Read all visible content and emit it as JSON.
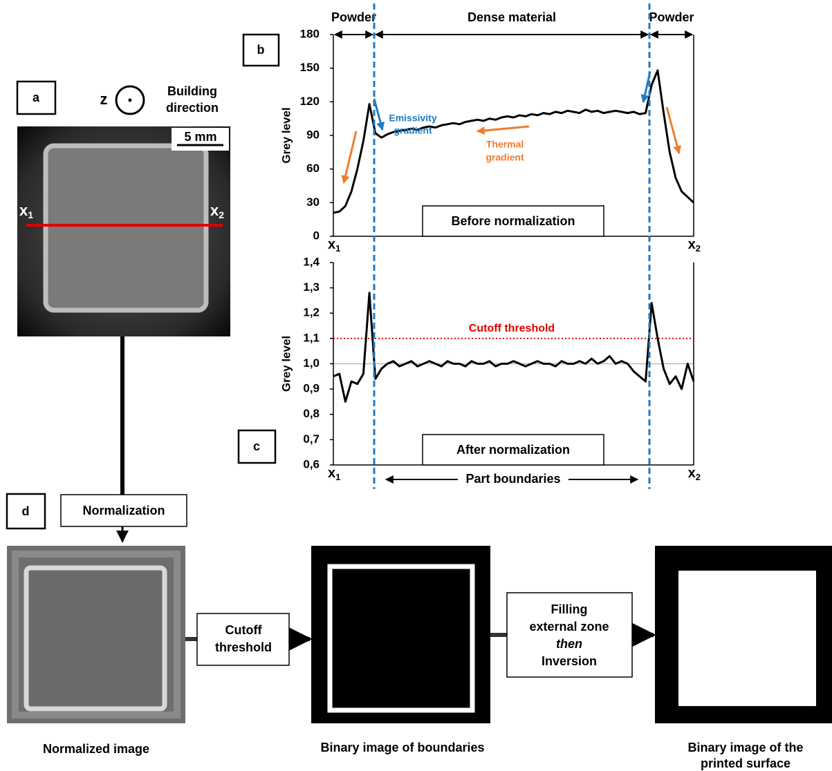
{
  "panel_labels": {
    "a": "a",
    "b": "b",
    "c": "c",
    "d": "d"
  },
  "panel_a": {
    "axis": "z",
    "direction": [
      "Building",
      "direction"
    ],
    "scale_bar": "5 mm",
    "x_start": {
      "main": "x",
      "sub": "1"
    },
    "x_end": {
      "main": "x",
      "sub": "2"
    }
  },
  "chart_data": [
    {
      "type": "line",
      "y_label": "Grey level",
      "color": "#000000",
      "ylim": [
        0,
        180
      ],
      "yticks": [
        0,
        30,
        60,
        90,
        120,
        150,
        180
      ],
      "x_start": {
        "main": "x",
        "sub": "1"
      },
      "x_end": {
        "main": "x",
        "sub": "2"
      },
      "regions": [
        "Powder",
        "Dense material",
        "Powder"
      ],
      "emissivity_label": [
        "Emissivity",
        "gradient"
      ],
      "thermal_label": [
        "Thermal",
        "gradient"
      ],
      "box_label": "Before normalization",
      "values": [
        21,
        22,
        27,
        40,
        60,
        85,
        118,
        92,
        88,
        91,
        93,
        94,
        95,
        96,
        95,
        97,
        98,
        97,
        99,
        100,
        101,
        100,
        102,
        103,
        104,
        103,
        105,
        104,
        106,
        107,
        106,
        108,
        107,
        109,
        108,
        110,
        109,
        111,
        110,
        112,
        111,
        110,
        113,
        111,
        112,
        110,
        111,
        112,
        111,
        110,
        111,
        109,
        110,
        135,
        148,
        110,
        75,
        52,
        40,
        35,
        30
      ]
    },
    {
      "type": "line",
      "y_label": "Grey level",
      "color": "#000000",
      "ylim": [
        0.6,
        1.4
      ],
      "yticks": [
        {
          "value": 0.6,
          "label": "0,6"
        },
        {
          "value": 0.7,
          "label": "0,7"
        },
        {
          "value": 0.8,
          "label": "0,8"
        },
        {
          "value": 0.9,
          "label": "0,9"
        },
        {
          "value": 1.0,
          "label": "1,0"
        },
        {
          "value": 1.1,
          "label": "1,1"
        },
        {
          "value": 1.2,
          "label": "1,2"
        },
        {
          "value": 1.3,
          "label": "1,3"
        },
        {
          "value": 1.4,
          "label": "1,4"
        }
      ],
      "x_start": {
        "main": "x",
        "sub": "1"
      },
      "x_end": {
        "main": "x",
        "sub": "2"
      },
      "reference_line": 1.0,
      "threshold": {
        "value": 1.1,
        "label": "Cutoff threshold"
      },
      "span_label": "Part boundaries",
      "box_label": "After normalization",
      "values": [
        0.95,
        0.96,
        0.85,
        0.93,
        0.92,
        0.96,
        1.28,
        0.94,
        0.98,
        1.0,
        1.01,
        0.99,
        1.0,
        1.01,
        0.99,
        1.0,
        1.01,
        1.0,
        0.99,
        1.01,
        1.0,
        1.0,
        0.99,
        1.01,
        1.0,
        1.0,
        1.01,
        0.99,
        1.0,
        1.0,
        1.01,
        1.0,
        0.99,
        1.0,
        1.01,
        1.0,
        1.0,
        0.99,
        1.01,
        1.0,
        1.0,
        1.01,
        1.0,
        1.02,
        1.0,
        1.01,
        1.03,
        1.0,
        1.01,
        1.0,
        0.97,
        0.95,
        0.93,
        1.24,
        1.1,
        0.98,
        0.92,
        0.95,
        0.9,
        1.0,
        0.93
      ]
    }
  ],
  "workflow": {
    "step1": "Normalization",
    "step2": [
      "Cutoff",
      "threshold"
    ],
    "step3": {
      "line1": "Filling",
      "line2": "external zone",
      "line3": "then",
      "line4": "Inversion"
    },
    "captions": {
      "normalized": "Normalized image",
      "boundaries": "Binary image of boundaries",
      "surface": [
        "Binary image of the",
        "printed surface"
      ]
    }
  }
}
